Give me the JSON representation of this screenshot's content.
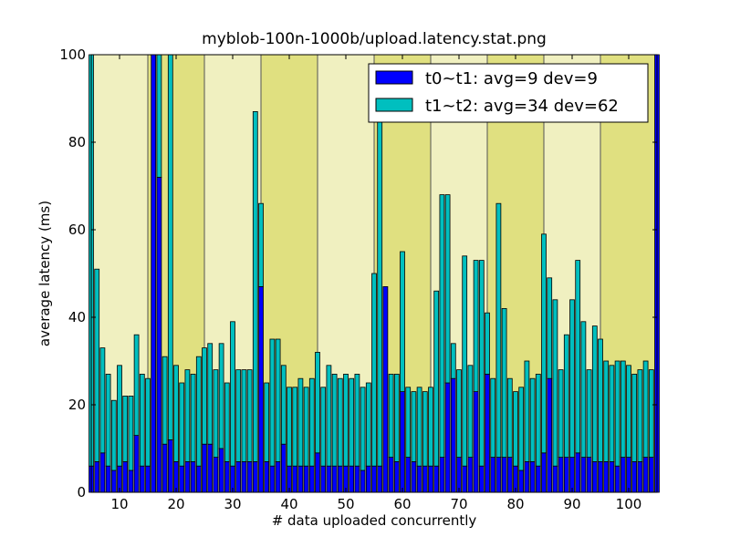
{
  "chart_data": {
    "type": "bar",
    "stacked": true,
    "title": "myblob-100n-1000b/upload.latency.stat.png",
    "xlabel": "# data uploaded concurrently",
    "ylabel": "average latency (ms)",
    "xlim": [
      5,
      105
    ],
    "ylim": [
      0,
      100
    ],
    "xticks": [
      10,
      20,
      30,
      40,
      50,
      60,
      70,
      80,
      90,
      100
    ],
    "yticks": [
      0,
      20,
      40,
      60,
      80,
      100
    ],
    "legend_position": "top-right",
    "background_bands": {
      "edges": [
        5,
        15,
        25,
        35,
        45,
        55,
        65,
        75,
        85,
        95,
        105
      ],
      "fills": [
        "light",
        "dark",
        "light",
        "dark",
        "light",
        "dark",
        "light",
        "dark",
        "light",
        "dark"
      ]
    },
    "x": [
      5,
      6,
      7,
      8,
      9,
      10,
      11,
      12,
      13,
      14,
      15,
      16,
      17,
      18,
      19,
      20,
      21,
      22,
      23,
      24,
      25,
      26,
      27,
      28,
      29,
      30,
      31,
      32,
      33,
      34,
      35,
      36,
      37,
      38,
      39,
      40,
      41,
      42,
      43,
      44,
      45,
      46,
      47,
      48,
      49,
      50,
      51,
      52,
      53,
      54,
      55,
      56,
      57,
      58,
      59,
      60,
      61,
      62,
      63,
      64,
      65,
      66,
      67,
      68,
      69,
      70,
      71,
      72,
      73,
      74,
      75,
      76,
      77,
      78,
      79,
      80,
      81,
      82,
      83,
      84,
      85,
      86,
      87,
      88,
      89,
      90,
      91,
      92,
      93,
      94,
      95,
      96,
      97,
      98,
      99,
      100,
      101,
      102,
      103,
      104,
      105
    ],
    "series": [
      {
        "name": "t0~t1: avg=9 dev=9",
        "color": "#0000ff",
        "values": [
          6,
          7,
          9,
          6,
          5,
          6,
          7,
          5,
          13,
          6,
          6,
          100,
          72,
          11,
          12,
          7,
          6,
          7,
          7,
          6,
          11,
          11,
          8,
          10,
          7,
          6,
          7,
          7,
          7,
          7,
          47,
          7,
          6,
          7,
          11,
          6,
          6,
          6,
          6,
          6,
          9,
          6,
          6,
          6,
          6,
          6,
          6,
          6,
          5,
          6,
          6,
          6,
          47,
          8,
          7,
          23,
          8,
          7,
          6,
          6,
          6,
          6,
          8,
          25,
          26,
          8,
          6,
          8,
          23,
          6,
          27,
          8,
          8,
          8,
          8,
          6,
          5,
          7,
          7,
          6,
          9,
          26,
          6,
          8,
          8,
          8,
          9,
          8,
          8,
          7,
          7,
          7,
          7,
          6,
          8,
          8,
          7,
          7,
          8,
          8,
          100
        ]
      },
      {
        "name": "t1~t2: avg=34 dev=62",
        "color": "#00bfbf",
        "values": [
          94,
          44,
          24,
          21,
          16,
          23,
          15,
          17,
          23,
          21,
          20,
          0,
          28,
          20,
          88,
          22,
          19,
          21,
          20,
          25,
          22,
          23,
          20,
          24,
          18,
          33,
          21,
          21,
          21,
          80,
          19,
          18,
          29,
          28,
          18,
          18,
          18,
          20,
          18,
          20,
          23,
          18,
          23,
          21,
          20,
          21,
          20,
          21,
          19,
          19,
          44,
          80,
          0,
          19,
          20,
          32,
          16,
          16,
          18,
          17,
          18,
          40,
          60,
          43,
          8,
          20,
          48,
          21,
          30,
          47,
          14,
          18,
          58,
          34,
          18,
          17,
          19,
          23,
          19,
          21,
          50,
          23,
          38,
          20,
          28,
          36,
          44,
          31,
          20,
          31,
          28,
          23,
          22,
          24,
          22,
          21,
          20,
          21,
          22,
          20,
          0
        ]
      }
    ]
  }
}
